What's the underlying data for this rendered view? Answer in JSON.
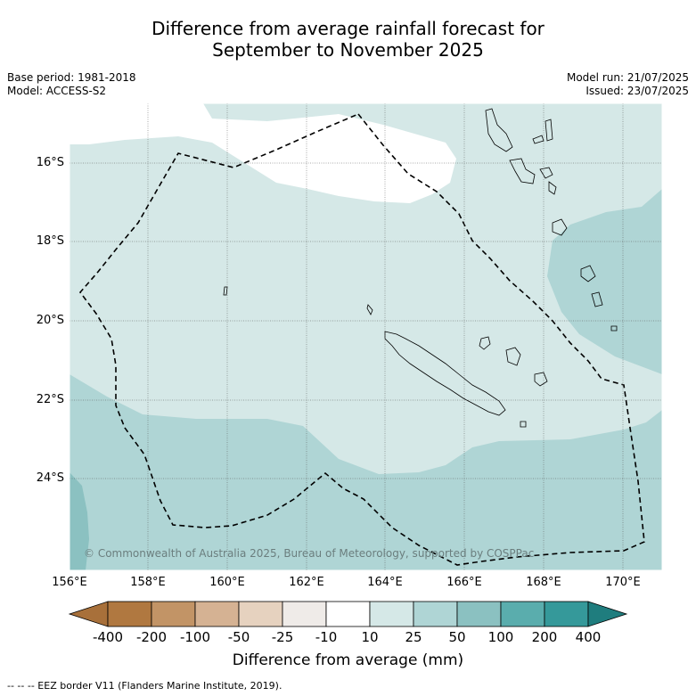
{
  "title_line1": "Difference from average rainfall forecast for",
  "title_line2": "September to November 2025",
  "base_period": "Base period: 1981-2018",
  "model": "Model: ACCESS-S2",
  "model_run": "Model run: 21/07/2025",
  "issued": "Issued: 23/07/2025",
  "copyright": "© Commonwealth of Australia 2025, Bureau of Meteorology, supported by COSPPac",
  "lat_labels": [
    "16°S",
    "18°S",
    "20°S",
    "22°S",
    "24°S"
  ],
  "lon_labels": [
    "156°E",
    "158°E",
    "160°E",
    "162°E",
    "164°E",
    "166°E",
    "168°E",
    "170°E"
  ],
  "colorbar": {
    "title": "Difference from average (mm)",
    "tick_labels": [
      "-400",
      "-200",
      "-100",
      "-50",
      "-25",
      "-10",
      "10",
      "25",
      "50",
      "100",
      "200",
      "400"
    ],
    "colors": [
      "#a8703a",
      "#b07840",
      "#c29466",
      "#d5b293",
      "#e6d2bf",
      "#efebe8",
      "#ffffff",
      "#d5e8e7",
      "#afd5d5",
      "#8bc1c1",
      "#5aadad",
      "#35999a",
      "#1f7d7e"
    ]
  },
  "footnote": "--  --  -- EEZ border V11 (Flanders Marine Institute, 2019).",
  "chart_data": {
    "type": "map",
    "variable": "Difference from average rainfall (mm)",
    "period": "September to November 2025",
    "lon_range": [
      156,
      171
    ],
    "lat_range": [
      -26.2,
      -14.4
    ],
    "categories_present": [
      "10 to 25",
      "25 to 50",
      "50 to 100",
      "-10 to 10"
    ]
  }
}
